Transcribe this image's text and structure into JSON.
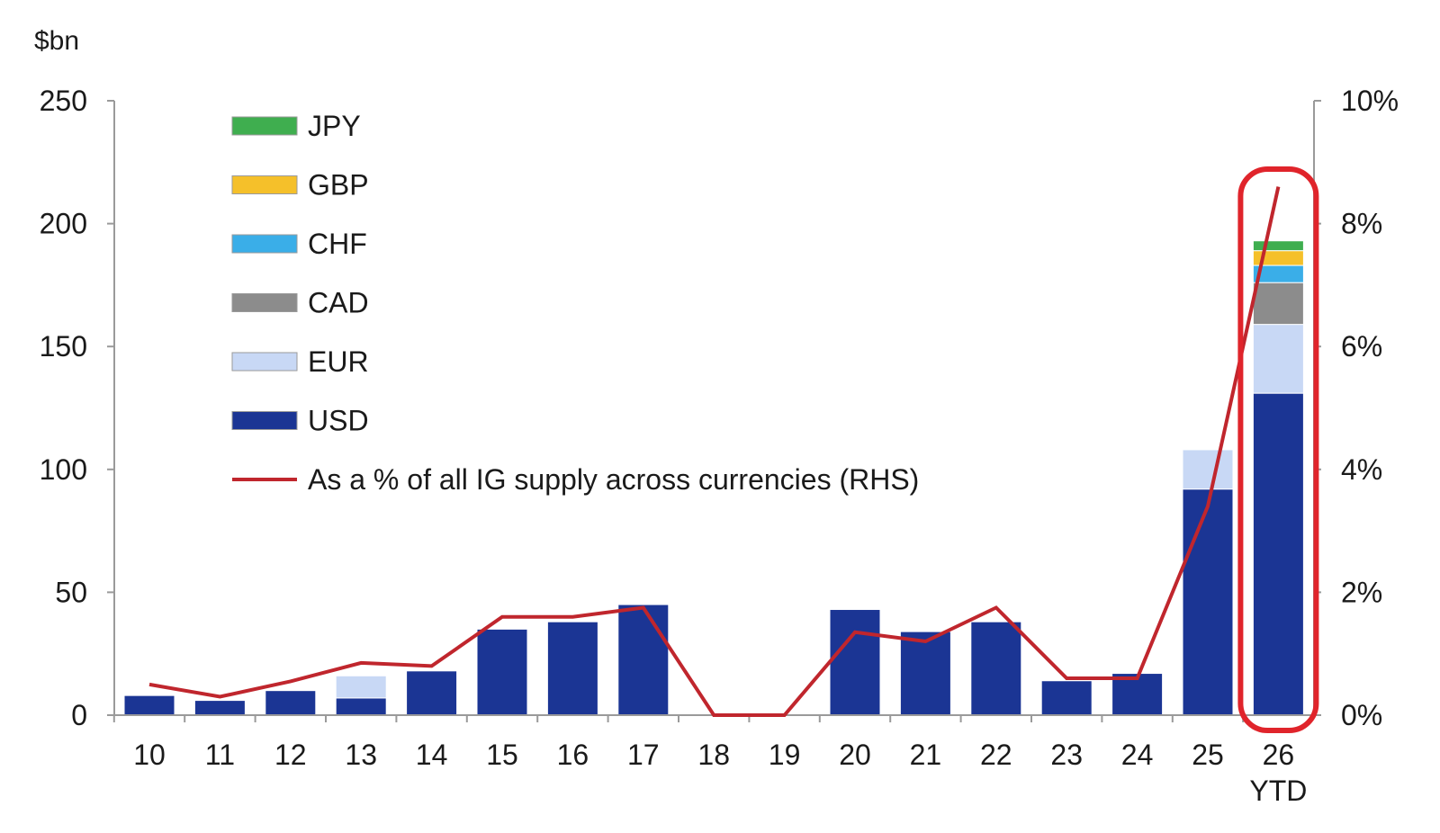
{
  "chart_data": {
    "type": "bar",
    "stacked": true,
    "left_unit": "$bn",
    "categories": [
      "10",
      "11",
      "12",
      "13",
      "14",
      "15",
      "16",
      "17",
      "18",
      "19",
      "20",
      "21",
      "22",
      "23",
      "24",
      "25",
      "26"
    ],
    "category_sublabels": {
      "16": "YTD"
    },
    "ylim": [
      0,
      250
    ],
    "yticks": [
      "0",
      "50",
      "100",
      "150",
      "200",
      "250"
    ],
    "y2lim": [
      0,
      10
    ],
    "y2ticks": [
      "0%",
      "2%",
      "4%",
      "6%",
      "8%",
      "10%"
    ],
    "series": [
      {
        "name": "USD",
        "color": "#1b3594",
        "values": [
          8,
          6,
          10,
          7,
          18,
          35,
          38,
          45,
          0,
          0,
          43,
          34,
          38,
          14,
          17,
          92,
          131
        ]
      },
      {
        "name": "EUR",
        "color": "#c8d8f5",
        "values": [
          0,
          0,
          0,
          9,
          0,
          0,
          0,
          0,
          0,
          0,
          0,
          0,
          0,
          0,
          0,
          16,
          28
        ]
      },
      {
        "name": "CAD",
        "color": "#8c8c8c",
        "values": [
          0,
          0,
          0,
          0,
          0,
          0,
          0,
          0,
          0,
          0,
          0,
          0,
          0,
          0,
          0,
          0,
          17
        ]
      },
      {
        "name": "CHF",
        "color": "#3aaee8",
        "values": [
          0,
          0,
          0,
          0,
          0,
          0,
          0,
          0,
          0,
          0,
          0,
          0,
          0,
          0,
          0,
          0,
          7
        ]
      },
      {
        "name": "GBP",
        "color": "#f5c02a",
        "values": [
          0,
          0,
          0,
          0,
          0,
          0,
          0,
          0,
          0,
          0,
          0,
          0,
          0,
          0,
          0,
          0,
          6
        ]
      },
      {
        "name": "JPY",
        "color": "#3fae4f",
        "values": [
          0,
          0,
          0,
          0,
          0,
          0,
          0,
          0,
          0,
          0,
          0,
          0,
          0,
          0,
          0,
          0,
          4
        ]
      }
    ],
    "line_series": {
      "name": "As a % of all IG supply across currencies (RHS)",
      "color": "#c0262d",
      "axis": "right",
      "values": [
        0.5,
        0.3,
        0.55,
        0.85,
        0.8,
        1.6,
        1.6,
        1.75,
        0,
        0,
        1.35,
        1.2,
        1.75,
        0.6,
        0.6,
        3.4,
        8.6
      ]
    },
    "legend_order": [
      "JPY",
      "GBP",
      "CHF",
      "CAD",
      "EUR",
      "USD",
      "line"
    ],
    "legend_placement": "top-left",
    "highlight": {
      "category_index": 16,
      "color": "#e0242b",
      "shape": "rounded-rect"
    },
    "grid": false
  }
}
